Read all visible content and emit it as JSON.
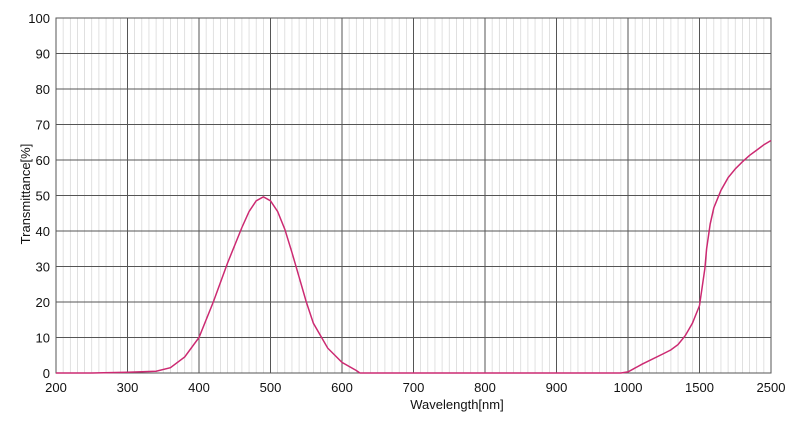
{
  "chart_data": {
    "type": "line",
    "title": "",
    "xlabel": "Wavelength[nm]",
    "ylabel": "Transmittance[%]",
    "ylim": [
      0,
      100
    ],
    "y_ticks": [
      "0",
      "10",
      "20",
      "30",
      "40",
      "50",
      "60",
      "70",
      "80",
      "90",
      "100"
    ],
    "x_ticks": [
      "200",
      "300",
      "400",
      "500",
      "600",
      "700",
      "800",
      "900",
      "1000",
      "1500",
      "2500"
    ],
    "x_scale_note": "piecewise axis: 200–1000 nm linear in 100 nm steps, then 1000–1500 and 1500–2500 each one division",
    "grid": true,
    "line_color": "#cc2a72",
    "series": [
      {
        "name": "",
        "x": [
          200,
          250,
          300,
          340,
          360,
          380,
          400,
          420,
          440,
          460,
          470,
          480,
          490,
          500,
          510,
          520,
          530,
          540,
          550,
          560,
          580,
          600,
          620,
          625,
          700,
          800,
          900,
          990,
          1000,
          1100,
          1250,
          1300,
          1350,
          1400,
          1450,
          1500,
          1550,
          1575,
          1600,
          1650,
          1700,
          1800,
          1900,
          2000,
          2100,
          2200,
          2300,
          2400,
          2500
        ],
        "y": [
          0,
          0,
          0.2,
          0.5,
          1.5,
          4.5,
          10,
          20,
          31,
          41,
          45.5,
          48.5,
          49.6,
          48.5,
          45.5,
          40.5,
          34,
          27,
          20,
          14,
          7,
          3,
          0.7,
          0,
          0,
          0,
          0,
          0,
          0.3,
          2.5,
          5.5,
          6.5,
          8,
          10.5,
          14,
          19,
          26,
          29.5,
          35,
          42,
          46.5,
          51.5,
          55,
          57.5,
          59.5,
          61.3,
          62.8,
          64.3,
          65.5
        ]
      }
    ]
  }
}
